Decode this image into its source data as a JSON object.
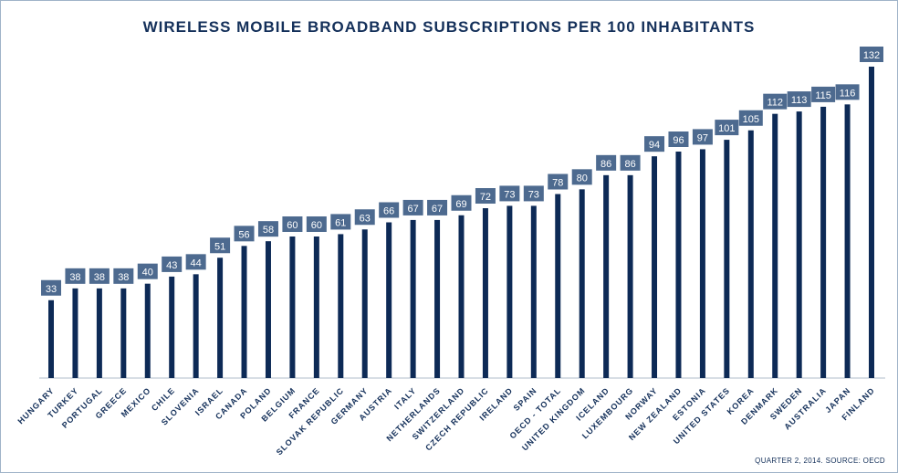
{
  "chart_data": {
    "type": "bar",
    "title": "WIRELESS MOBILE BROADBAND SUBSCRIPTIONS PER 100 INHABITANTS",
    "source_note": "QUARTER 2, 2014. SOURCE: OECD",
    "categories": [
      "HUNGARY",
      "TURKEY",
      "PORTUGAL",
      "GREECE",
      "MEXICO",
      "CHILE",
      "SLOVENIA",
      "ISRAEL",
      "CANADA",
      "POLAND",
      "BELGIUM",
      "FRANCE",
      "SLOVAK REPUBLIC",
      "GERMANY",
      "AUSTRIA",
      "ITALY",
      "NETHERLANDS",
      "SWITZERLAND",
      "CZECH REPUBLIC",
      "IRELAND",
      "SPAIN",
      "OECD - TOTAL",
      "UNITED KINGDOM",
      "ICELAND",
      "LUXEMBOURG",
      "NORWAY",
      "NEW ZEALAND",
      "ESTONIA",
      "UNITED STATES",
      "KOREA",
      "DENMARK",
      "SWEDEN",
      "AUSTRALIA",
      "JAPAN",
      "FINLAND"
    ],
    "values": [
      33,
      38,
      38,
      38,
      40,
      43,
      44,
      51,
      56,
      58,
      60,
      60,
      61,
      63,
      66,
      67,
      67,
      69,
      72,
      73,
      73,
      78,
      80,
      86,
      86,
      94,
      96,
      97,
      101,
      105,
      112,
      113,
      115,
      116,
      132
    ],
    "ylim": [
      0,
      132
    ],
    "grid": false,
    "xlabel": "",
    "ylabel": "",
    "colors": {
      "bar": "#0d2a56",
      "label_box": "#4d6a8f",
      "label_text": "#ffffff",
      "text": "#14305a",
      "axis": "#b0bccb"
    }
  }
}
